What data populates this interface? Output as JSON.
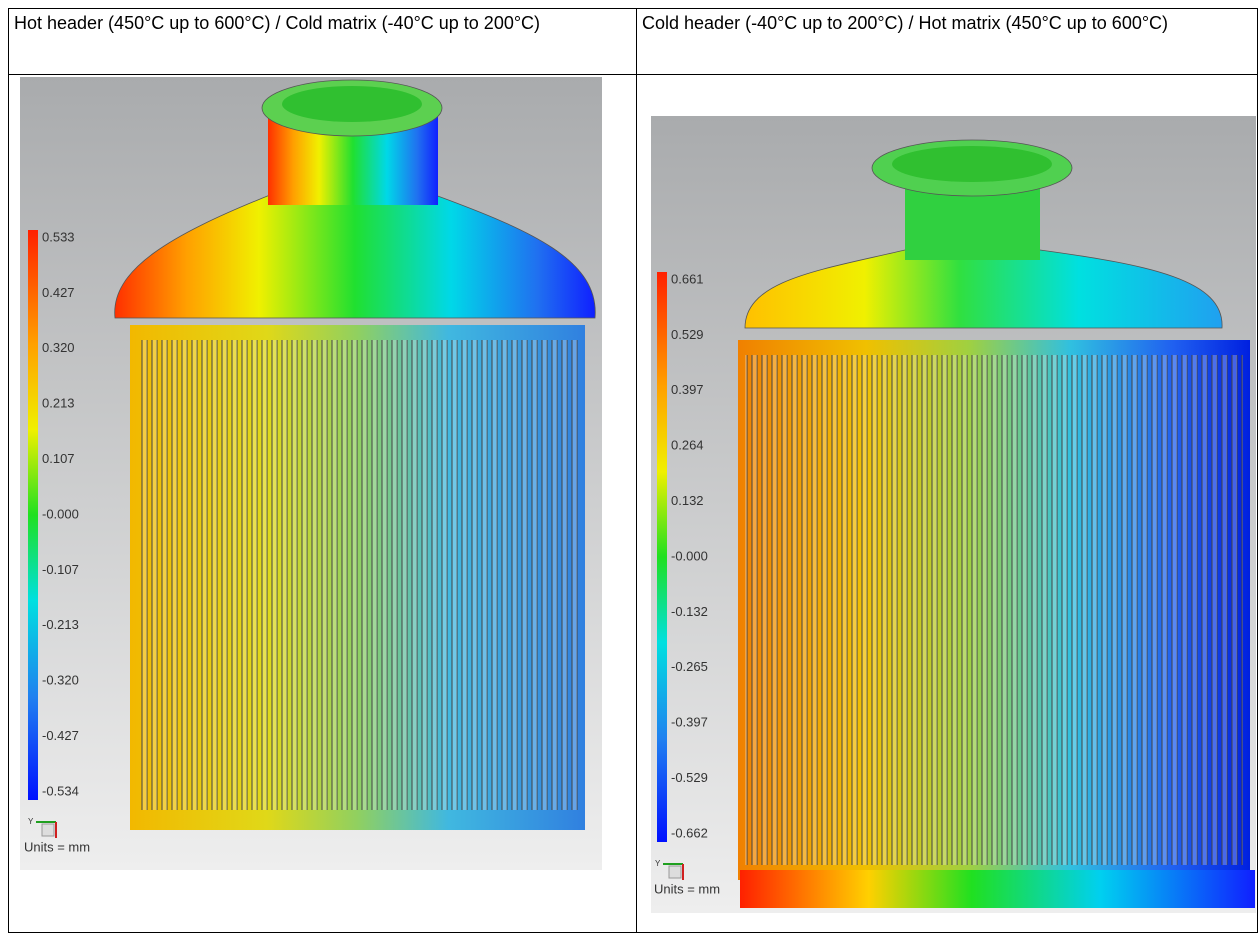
{
  "table": {
    "header": [
      "Hot header (450°C up to 600°C) / Cold matrix (-40°C up to 200°C)",
      "Cold header (-40°C up to 200°C) / Hot matrix (450°C up to 600°C)"
    ]
  },
  "panels": [
    {
      "legend": [
        "0.533",
        "0.427",
        "0.320",
        "0.213",
        "0.107",
        "-0.000",
        "-0.107",
        "-0.213",
        "-0.320",
        "-0.427",
        "-0.534"
      ],
      "units": "Units = mm",
      "axis": "Y"
    },
    {
      "legend": [
        "0.661",
        "0.529",
        "0.397",
        "0.264",
        "0.132",
        "-0.000",
        "-0.132",
        "-0.265",
        "-0.397",
        "-0.529",
        "-0.662"
      ],
      "units": "Units = mm",
      "axis": "Y"
    }
  ]
}
